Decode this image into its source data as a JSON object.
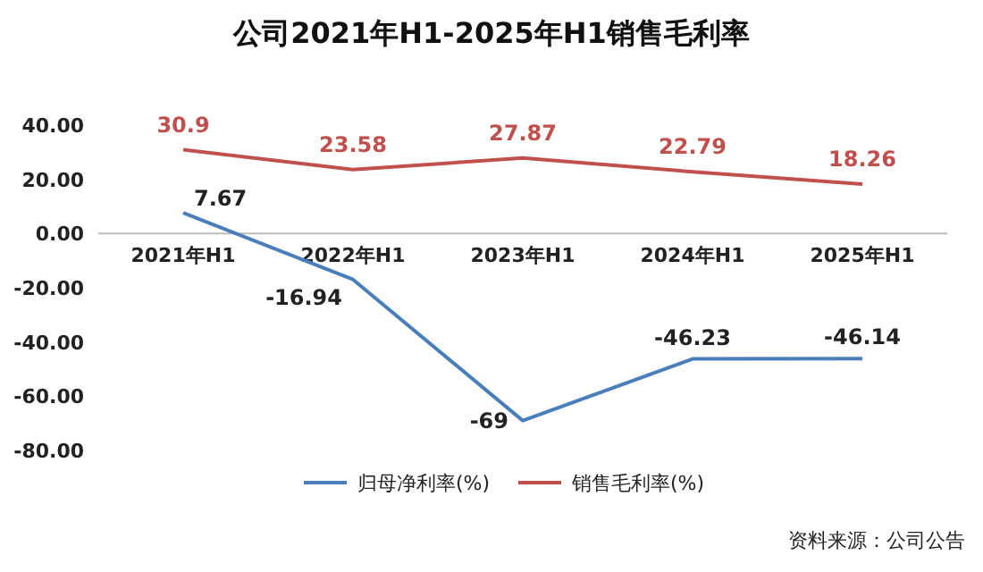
{
  "chart_data": {
    "type": "line",
    "title": "公司2021年H1-2025年H1销售毛利率",
    "categories": [
      "2021年H1",
      "2022年H1",
      "2023年H1",
      "2024年H1",
      "2025年H1"
    ],
    "series": [
      {
        "name": "归母净利率(%)",
        "color": "#4a7ebb",
        "values": [
          7.67,
          -16.94,
          -69,
          -46.23,
          -46.14
        ]
      },
      {
        "name": "销售毛利率(%)",
        "color": "#c0504d",
        "values": [
          30.9,
          23.58,
          27.87,
          22.79,
          18.26
        ]
      }
    ],
    "ylim": [
      -80,
      40
    ],
    "yticks": [
      {
        "value": -80,
        "label": "-80.00"
      },
      {
        "value": -60,
        "label": "-60.00"
      },
      {
        "value": -40,
        "label": "-40.00"
      },
      {
        "value": -20,
        "label": "-20.00"
      },
      {
        "value": 0,
        "label": "0.00"
      },
      {
        "value": 20,
        "label": "20.00"
      },
      {
        "value": 40,
        "label": "40.00"
      }
    ],
    "data_labels": true,
    "legend": "bottom",
    "line_style": "solid",
    "annotations": [
      "资料来源：公司公告"
    ]
  }
}
